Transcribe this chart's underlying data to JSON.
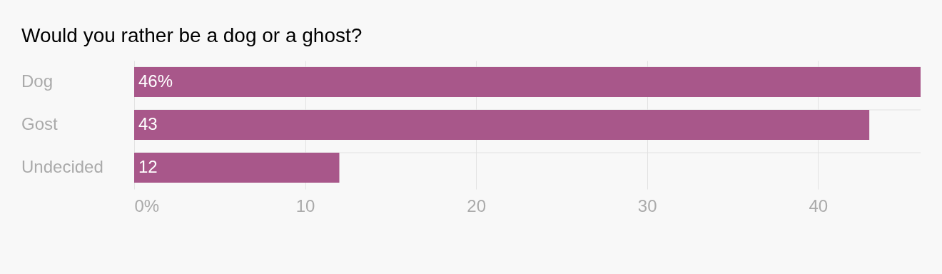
{
  "chart_data": {
    "type": "bar",
    "orientation": "horizontal",
    "title": "Would you rather be a dog or a ghost?",
    "categories": [
      "Dog",
      "Gost",
      "Undecided"
    ],
    "values": [
      46,
      43,
      12
    ],
    "value_labels": [
      "46%",
      "43",
      "12"
    ],
    "color": "#a8578a",
    "xlim": [
      0,
      46
    ],
    "xticks": [
      {
        "value": 0,
        "label": "0%"
      },
      10,
      20,
      30,
      40
    ],
    "grid": true
  }
}
